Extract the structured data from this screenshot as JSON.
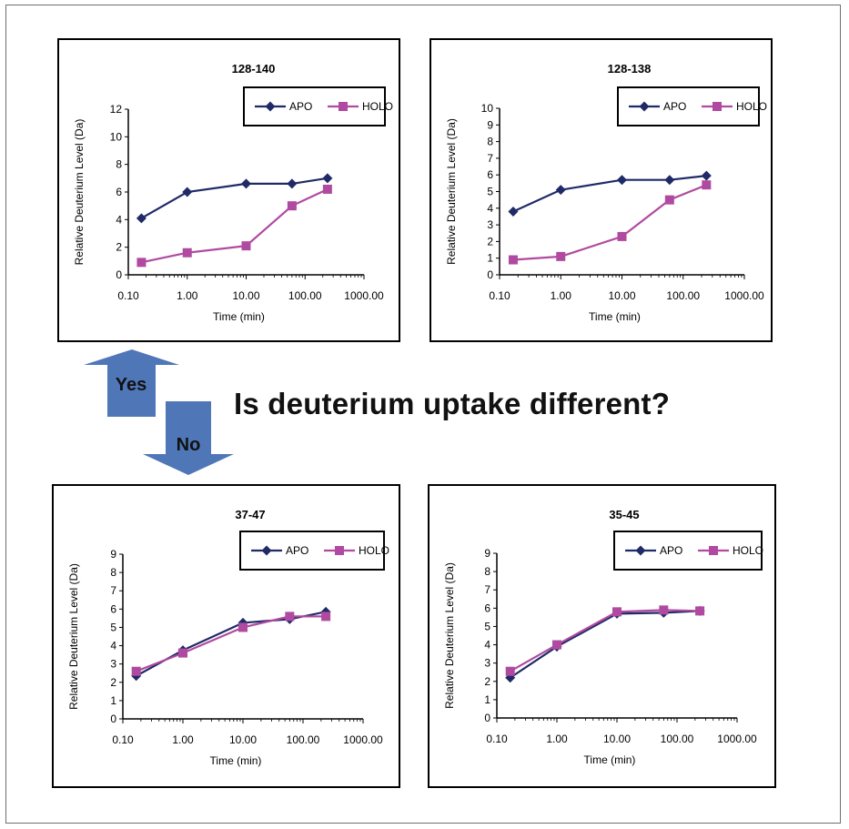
{
  "question": "Is deuterium uptake different?",
  "flow": {
    "yes_label": "Yes",
    "no_label": "No",
    "arrow_color": "#4f77b8"
  },
  "colors": {
    "apo": "#1f2a66",
    "holo": "#b04aa0"
  },
  "chart_data": [
    {
      "type": "line",
      "title": "128-140",
      "xlabel": "Time (min)",
      "ylabel": "Relative Deuterium Level  (Da)",
      "x_scale": "log",
      "xlim": [
        0.1,
        1000
      ],
      "x_ticks": [
        "0.10",
        "1.00",
        "10.00",
        "100.00",
        "1000.00"
      ],
      "ylim": [
        0,
        12
      ],
      "y_ticks": [
        "0",
        "2",
        "4",
        "6",
        "8",
        "10",
        "12"
      ],
      "legend": "top-right",
      "x": [
        0.167,
        1,
        10,
        60,
        240
      ],
      "series": [
        {
          "name": "APO",
          "marker": "diamond",
          "values": [
            4.1,
            6.0,
            6.6,
            6.6,
            7.0
          ]
        },
        {
          "name": "HOLO",
          "marker": "square",
          "values": [
            0.9,
            1.6,
            2.1,
            5.0,
            6.2
          ]
        }
      ]
    },
    {
      "type": "line",
      "title": "128-138",
      "xlabel": "Time (min)",
      "ylabel": "Relative Deuterium Level  (Da)",
      "x_scale": "log",
      "xlim": [
        0.1,
        1000
      ],
      "x_ticks": [
        "0.10",
        "1.00",
        "10.00",
        "100.00",
        "1000.00"
      ],
      "ylim": [
        0,
        10
      ],
      "y_ticks": [
        "0",
        "1",
        "2",
        "3",
        "4",
        "5",
        "6",
        "7",
        "8",
        "9",
        "10"
      ],
      "legend": "top-right",
      "x": [
        0.167,
        1,
        10,
        60,
        240
      ],
      "series": [
        {
          "name": "APO",
          "marker": "diamond",
          "values": [
            3.8,
            5.1,
            5.7,
            5.7,
            5.95
          ]
        },
        {
          "name": "HOLO",
          "marker": "square",
          "values": [
            0.9,
            1.1,
            2.3,
            4.5,
            5.4
          ]
        }
      ]
    },
    {
      "type": "line",
      "title": "37-47",
      "xlabel": "Time (min)",
      "ylabel": "Relative Deuterium Level  (Da)",
      "x_scale": "log",
      "xlim": [
        0.1,
        1000
      ],
      "x_ticks": [
        "0.10",
        "1.00",
        "10.00",
        "100.00",
        "1000.00"
      ],
      "ylim": [
        0,
        9
      ],
      "y_ticks": [
        "0",
        "1",
        "2",
        "3",
        "4",
        "5",
        "6",
        "7",
        "8",
        "9"
      ],
      "legend": "top-right",
      "x": [
        0.167,
        1,
        10,
        60,
        240
      ],
      "series": [
        {
          "name": "APO",
          "marker": "diamond",
          "values": [
            2.35,
            3.75,
            5.25,
            5.45,
            5.85
          ]
        },
        {
          "name": "HOLO",
          "marker": "square",
          "values": [
            2.6,
            3.6,
            5.0,
            5.6,
            5.6
          ]
        }
      ]
    },
    {
      "type": "line",
      "title": "35-45",
      "xlabel": "Time (min)",
      "ylabel": "Relative Deuterium Level  (Da)",
      "x_scale": "log",
      "xlim": [
        0.1,
        1000
      ],
      "x_ticks": [
        "0.10",
        "1.00",
        "10.00",
        "100.00",
        "1000.00"
      ],
      "ylim": [
        0,
        9
      ],
      "y_ticks": [
        "0",
        "1",
        "2",
        "3",
        "4",
        "5",
        "6",
        "7",
        "8",
        "9"
      ],
      "legend": "top-right",
      "x": [
        0.167,
        1,
        10,
        60,
        240
      ],
      "series": [
        {
          "name": "APO",
          "marker": "diamond",
          "values": [
            2.2,
            3.9,
            5.7,
            5.75,
            5.85
          ]
        },
        {
          "name": "HOLO",
          "marker": "square",
          "values": [
            2.55,
            4.0,
            5.8,
            5.9,
            5.85
          ]
        }
      ]
    }
  ]
}
